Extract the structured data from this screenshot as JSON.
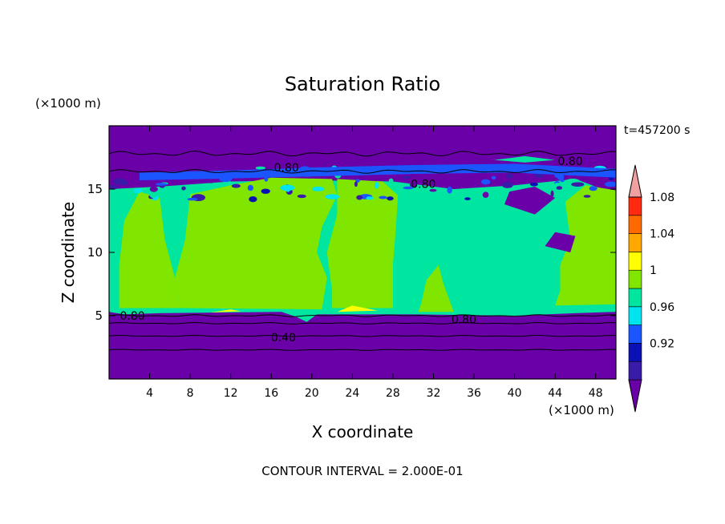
{
  "chart_data": {
    "type": "heatmap",
    "title": "Saturation Ratio",
    "xlabel": "X coordinate",
    "ylabel": "Z coordinate",
    "x_unit": "(×1000 m)",
    "y_unit": "(×1000 m)",
    "time_label": "t=457200 s",
    "footer": "CONTOUR INTERVAL = 2.000E-01",
    "xlim": [
      0,
      50
    ],
    "ylim": [
      0,
      20
    ],
    "x_ticks": [
      "4",
      "8",
      "12",
      "16",
      "20",
      "24",
      "28",
      "32",
      "36",
      "40",
      "44",
      "48"
    ],
    "y_ticks": [
      "5",
      "10",
      "15"
    ],
    "contour_labels": [
      {
        "text": "0.80",
        "x": 17.5,
        "y": 16.7
      },
      {
        "text": "0.80",
        "x": 31,
        "y": 15.4
      },
      {
        "text": "0.80",
        "x": 45.5,
        "y": 17.2
      },
      {
        "text": "0.80",
        "x": 2.3,
        "y": 5.0
      },
      {
        "text": "0.80",
        "x": 35,
        "y": 4.7
      },
      {
        "text": "0.40",
        "x": 17.2,
        "y": 3.3
      }
    ],
    "colorbar": {
      "labels": [
        "0.92",
        "0.96",
        "1",
        "1.04",
        "1.08"
      ],
      "levels": [
        "<0.90",
        "0.90-0.92",
        "0.92-0.94",
        "0.94-0.96",
        "0.96-0.98",
        "0.98-1.00",
        "1.00-1.02",
        "1.02-1.04",
        "1.04-1.06",
        "1.06-1.08",
        "1.08-1.10",
        ">1.10"
      ],
      "colors": [
        "#6a00a8",
        "#3a1aa8",
        "#0a10b4",
        "#1a55ff",
        "#00e4f0",
        "#00e5a0",
        "#80e600",
        "#ffff00",
        "#ffa800",
        "#ff6a00",
        "#ff2a10",
        "#f0a0a0"
      ]
    },
    "regions": [
      {
        "name": "lower dry layer",
        "x": [
          0,
          50
        ],
        "z": [
          0,
          5
        ],
        "value": "<0.90"
      },
      {
        "name": "upper dry layer",
        "x": [
          0,
          50
        ],
        "z": [
          16.5,
          20
        ],
        "value": "<0.90"
      },
      {
        "name": "cloud layer",
        "x": [
          0,
          50
        ],
        "z": [
          5,
          16
        ],
        "value": "0.98-1.02"
      }
    ]
  }
}
